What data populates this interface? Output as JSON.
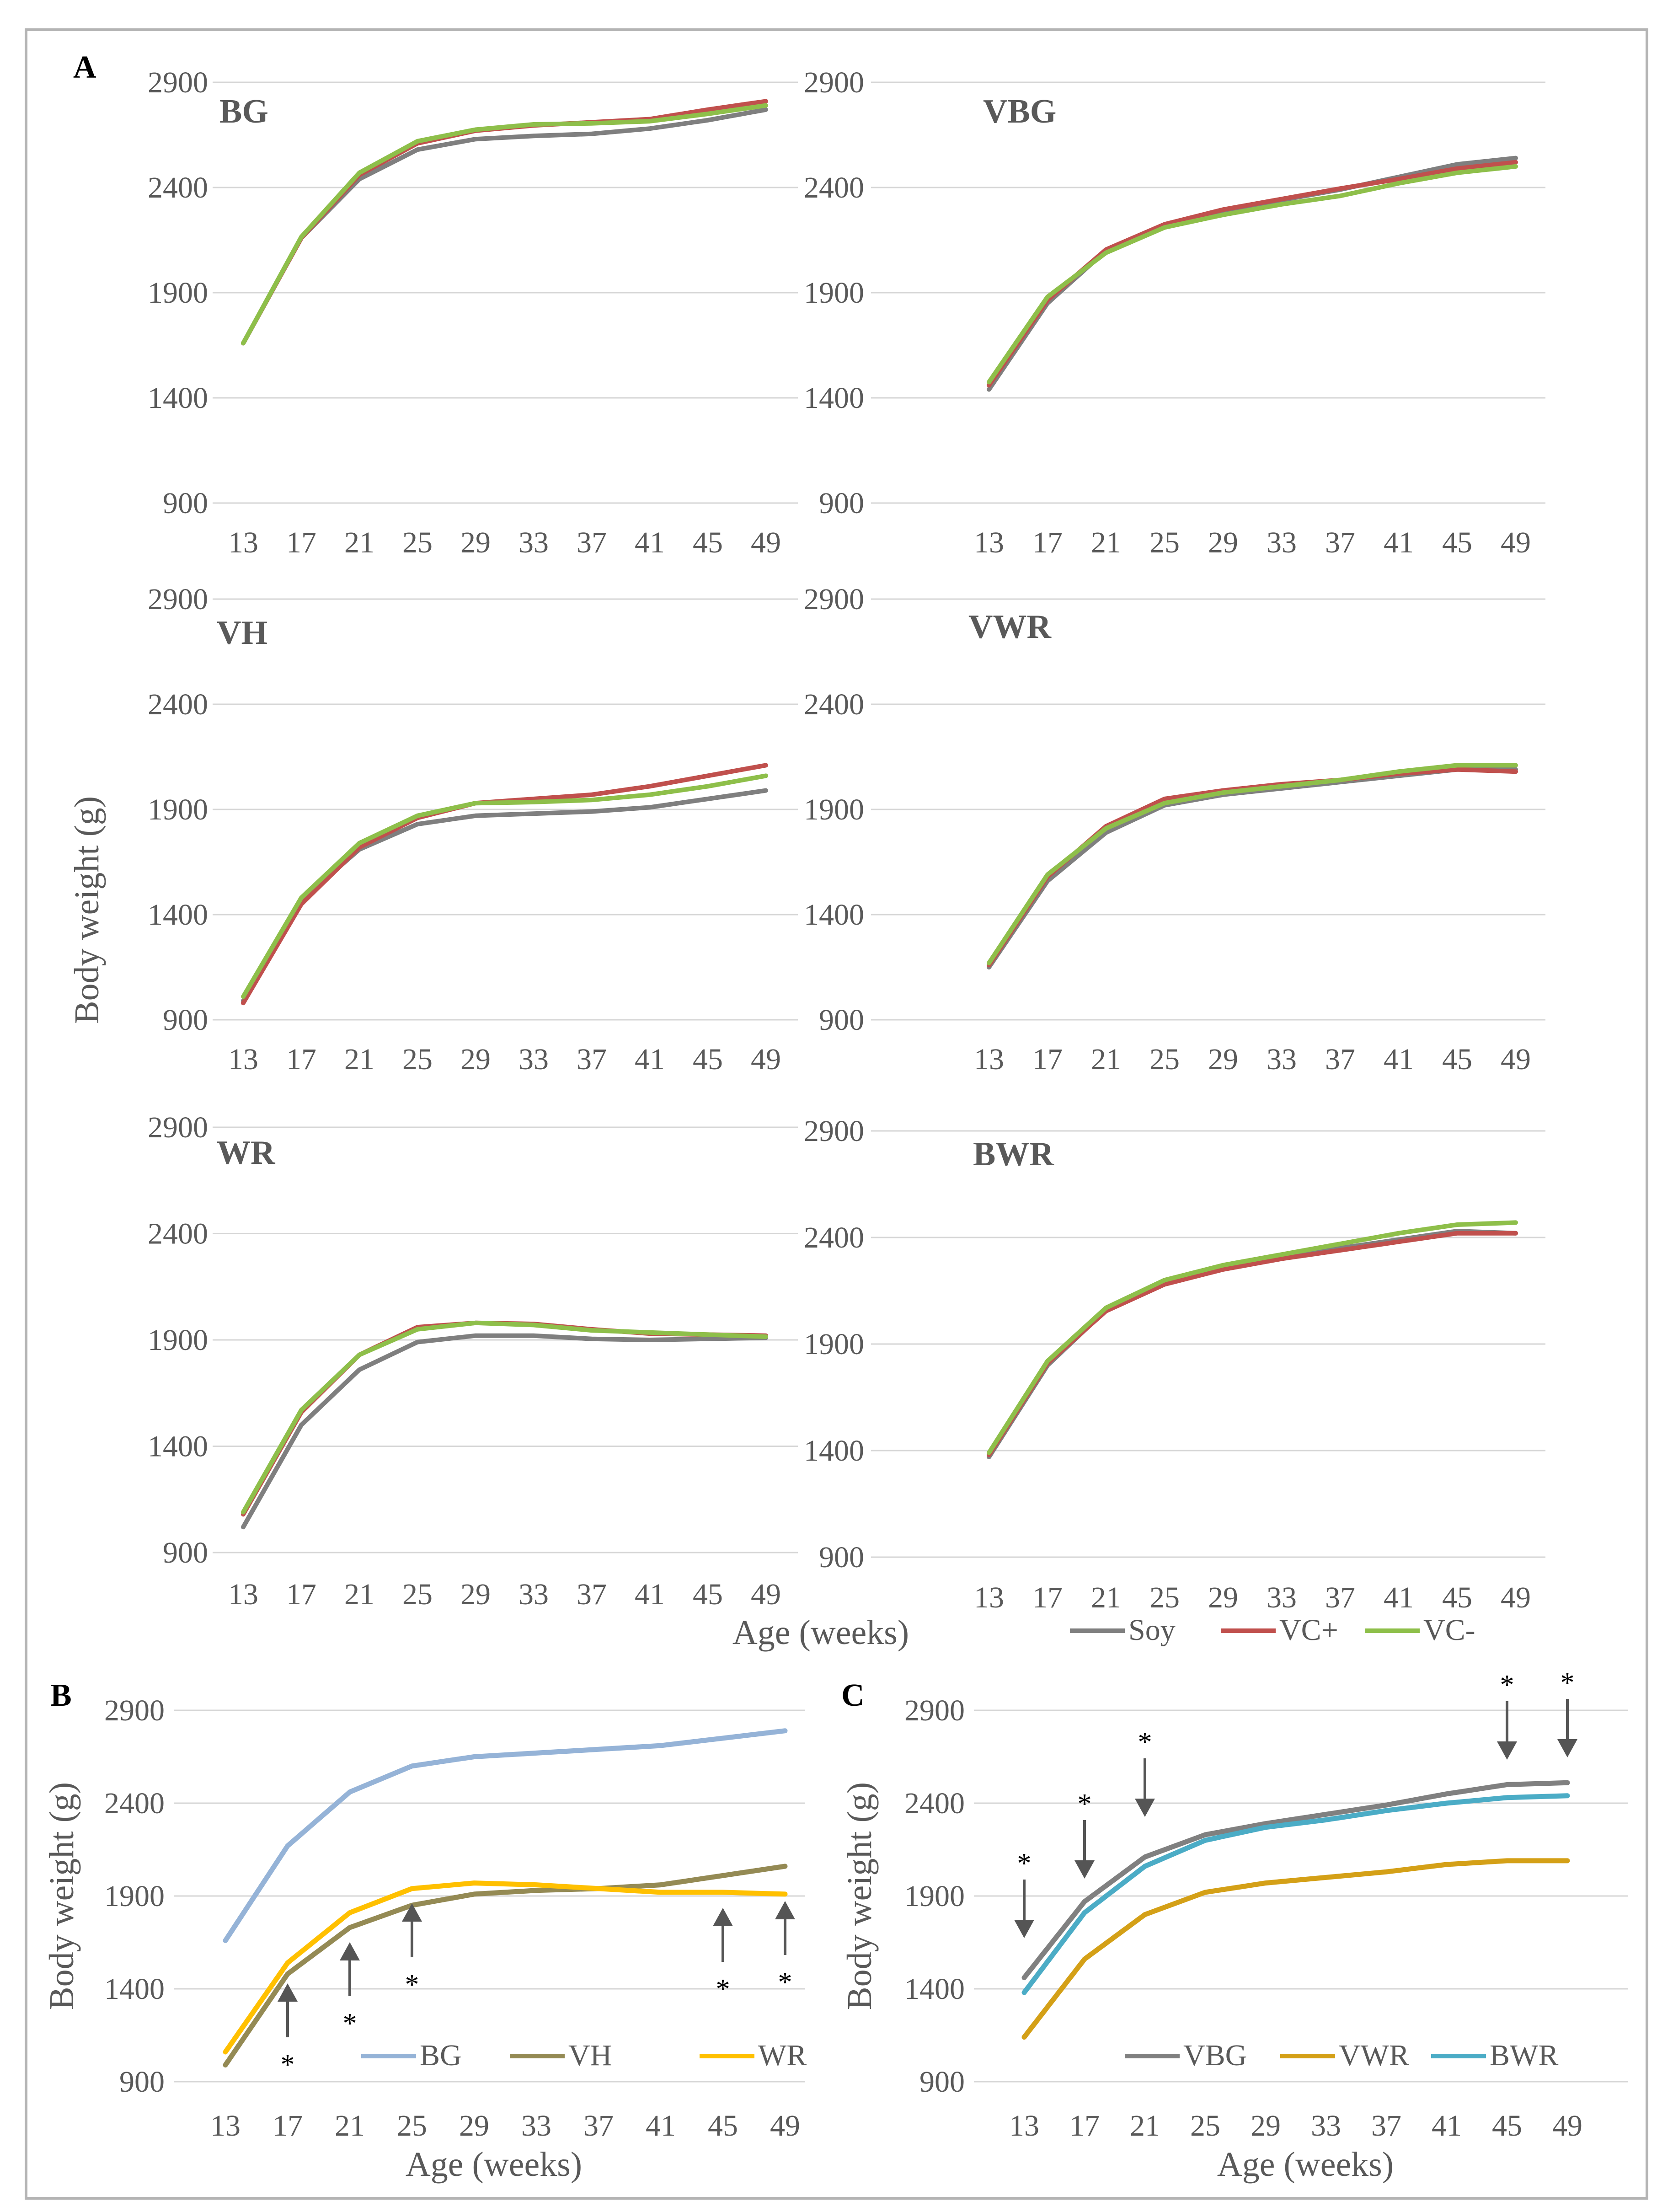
{
  "figure": {
    "axis_labels": {
      "body_weight": "Body weight (g)",
      "age": "Age (weeks)"
    },
    "panel_labels": {
      "a": "A",
      "b": "B",
      "c": "C"
    }
  },
  "colors": {
    "Soy": "#7f7f7f",
    "VC+": "#c0504d",
    "VC-": "#8ebf4a",
    "BG": "#95b3d7",
    "VH": "#948a54",
    "WR": "#ffc000",
    "VBG": "#808080",
    "VWR": "#d4a017",
    "BWR": "#4bacc6"
  },
  "chart_data": [
    {
      "panel": "A",
      "type": "line",
      "title": "BG",
      "x": [
        13,
        17,
        21,
        25,
        29,
        33,
        37,
        41,
        45,
        49
      ],
      "ylim": [
        900,
        2900
      ],
      "yticks": [
        900,
        1400,
        1900,
        2400,
        2900
      ],
      "grid": true,
      "series": [
        {
          "name": "Soy",
          "values": [
            1660,
            2160,
            2440,
            2580,
            2630,
            2645,
            2655,
            2680,
            2720,
            2770
          ]
        },
        {
          "name": "VC+",
          "values": [
            1660,
            2160,
            2460,
            2610,
            2670,
            2695,
            2710,
            2725,
            2770,
            2810
          ]
        },
        {
          "name": "VC-",
          "values": [
            1660,
            2165,
            2470,
            2620,
            2675,
            2700,
            2705,
            2715,
            2750,
            2790
          ]
        }
      ]
    },
    {
      "panel": "A",
      "type": "line",
      "title": "VBG",
      "x": [
        13,
        17,
        21,
        25,
        29,
        33,
        37,
        41,
        45,
        49
      ],
      "ylim": [
        900,
        2900
      ],
      "yticks": [
        900,
        1400,
        1900,
        2400,
        2900
      ],
      "grid": true,
      "series": [
        {
          "name": "Soy",
          "values": [
            1440,
            1850,
            2100,
            2220,
            2290,
            2340,
            2390,
            2450,
            2510,
            2540
          ]
        },
        {
          "name": "VC+",
          "values": [
            1460,
            1865,
            2105,
            2225,
            2295,
            2345,
            2395,
            2440,
            2490,
            2520
          ]
        },
        {
          "name": "VC-",
          "values": [
            1475,
            1880,
            2090,
            2210,
            2270,
            2320,
            2360,
            2420,
            2470,
            2500
          ]
        }
      ]
    },
    {
      "panel": "A",
      "type": "line",
      "title": "VH",
      "x": [
        13,
        17,
        21,
        25,
        29,
        33,
        37,
        41,
        45,
        49
      ],
      "ylim": [
        900,
        2900
      ],
      "yticks": [
        900,
        1400,
        1900,
        2400,
        2900
      ],
      "grid": true,
      "series": [
        {
          "name": "Soy",
          "values": [
            990,
            1470,
            1710,
            1830,
            1870,
            1880,
            1890,
            1910,
            1950,
            1990
          ]
        },
        {
          "name": "VC+",
          "values": [
            980,
            1450,
            1720,
            1860,
            1930,
            1950,
            1970,
            2010,
            2060,
            2110
          ]
        },
        {
          "name": "VC-",
          "values": [
            1010,
            1480,
            1740,
            1870,
            1930,
            1935,
            1945,
            1970,
            2010,
            2060
          ]
        }
      ]
    },
    {
      "panel": "A",
      "type": "line",
      "title": "VWR",
      "x": [
        13,
        17,
        21,
        25,
        29,
        33,
        37,
        41,
        45,
        49
      ],
      "ylim": [
        900,
        2900
      ],
      "yticks": [
        900,
        1400,
        1900,
        2400,
        2900
      ],
      "grid": true,
      "series": [
        {
          "name": "Soy",
          "values": [
            1150,
            1560,
            1790,
            1920,
            1970,
            2000,
            2030,
            2060,
            2090,
            2090
          ]
        },
        {
          "name": "VC+",
          "values": [
            1160,
            1580,
            1820,
            1950,
            1990,
            2020,
            2040,
            2070,
            2090,
            2080
          ]
        },
        {
          "name": "VC-",
          "values": [
            1170,
            1590,
            1810,
            1930,
            1980,
            2010,
            2040,
            2080,
            2110,
            2110
          ]
        }
      ]
    },
    {
      "panel": "A",
      "type": "line",
      "title": "WR",
      "x": [
        13,
        17,
        21,
        25,
        29,
        33,
        37,
        41,
        45,
        49
      ],
      "ylim": [
        900,
        2900
      ],
      "yticks": [
        900,
        1400,
        1900,
        2400,
        2900
      ],
      "grid": true,
      "series": [
        {
          "name": "Soy",
          "values": [
            1020,
            1500,
            1760,
            1890,
            1920,
            1920,
            1905,
            1900,
            1905,
            1910
          ]
        },
        {
          "name": "VC+",
          "values": [
            1080,
            1560,
            1830,
            1960,
            1980,
            1975,
            1950,
            1930,
            1925,
            1920
          ]
        },
        {
          "name": "VC-",
          "values": [
            1090,
            1570,
            1830,
            1950,
            1980,
            1970,
            1945,
            1935,
            1925,
            1915
          ]
        }
      ]
    },
    {
      "panel": "A",
      "type": "line",
      "title": "BWR",
      "x": [
        13,
        17,
        21,
        25,
        29,
        33,
        37,
        41,
        45,
        49
      ],
      "ylim": [
        900,
        2900
      ],
      "yticks": [
        900,
        1400,
        1900,
        2400,
        2900
      ],
      "grid": true,
      "series": [
        {
          "name": "Soy",
          "values": [
            1370,
            1800,
            2060,
            2190,
            2260,
            2310,
            2350,
            2390,
            2430,
            2420
          ]
        },
        {
          "name": "VC+",
          "values": [
            1380,
            1810,
            2055,
            2180,
            2250,
            2300,
            2340,
            2380,
            2420,
            2420
          ]
        },
        {
          "name": "VC-",
          "values": [
            1390,
            1820,
            2070,
            2200,
            2270,
            2320,
            2370,
            2420,
            2460,
            2470
          ]
        }
      ],
      "legend": [
        "Soy",
        "VC+",
        "VC-"
      ],
      "legend_position": "bottom"
    },
    {
      "panel": "B",
      "type": "line",
      "title": "",
      "x": [
        13,
        17,
        21,
        25,
        29,
        33,
        37,
        41,
        45,
        49
      ],
      "ylim": [
        900,
        2900
      ],
      "yticks": [
        900,
        1400,
        1900,
        2400,
        2900
      ],
      "grid": true,
      "xlabel": "Age (weeks)",
      "ylabel": "Body weight (g)",
      "series": [
        {
          "name": "BG",
          "values": [
            1660,
            2170,
            2460,
            2600,
            2650,
            2670,
            2690,
            2710,
            2750,
            2790
          ]
        },
        {
          "name": "VH",
          "values": [
            990,
            1480,
            1730,
            1850,
            1910,
            1930,
            1940,
            1960,
            2010,
            2060
          ]
        },
        {
          "name": "WR",
          "values": [
            1060,
            1540,
            1810,
            1940,
            1970,
            1960,
            1940,
            1920,
            1920,
            1910
          ]
        }
      ],
      "annotations": [
        {
          "x": 17,
          "label": "*",
          "dir": "up"
        },
        {
          "x": 21,
          "label": "*",
          "dir": "up"
        },
        {
          "x": 25,
          "label": "*",
          "dir": "up"
        },
        {
          "x": 45,
          "label": "*",
          "dir": "up"
        },
        {
          "x": 49,
          "label": "*",
          "dir": "up"
        }
      ],
      "legend_position": "bottom-right"
    },
    {
      "panel": "C",
      "type": "line",
      "title": "",
      "x": [
        13,
        17,
        21,
        25,
        29,
        33,
        37,
        41,
        45,
        49
      ],
      "ylim": [
        900,
        2900
      ],
      "yticks": [
        900,
        1400,
        1900,
        2400,
        2900
      ],
      "grid": true,
      "xlabel": "Age (weeks)",
      "ylabel": "Body weight (g)",
      "series": [
        {
          "name": "VBG",
          "values": [
            1460,
            1870,
            2110,
            2230,
            2290,
            2340,
            2390,
            2450,
            2500,
            2510
          ]
        },
        {
          "name": "VWR",
          "values": [
            1140,
            1560,
            1800,
            1920,
            1970,
            2000,
            2030,
            2070,
            2090,
            2090
          ]
        },
        {
          "name": "BWR",
          "values": [
            1380,
            1810,
            2060,
            2200,
            2270,
            2310,
            2360,
            2400,
            2430,
            2440
          ]
        }
      ],
      "annotations": [
        {
          "x": 13,
          "label": "*",
          "dir": "down"
        },
        {
          "x": 17,
          "label": "*",
          "dir": "down"
        },
        {
          "x": 21,
          "label": "*",
          "dir": "down"
        },
        {
          "x": 45,
          "label": "*",
          "dir": "down"
        },
        {
          "x": 49,
          "label": "*",
          "dir": "down"
        }
      ],
      "legend_position": "bottom"
    }
  ]
}
